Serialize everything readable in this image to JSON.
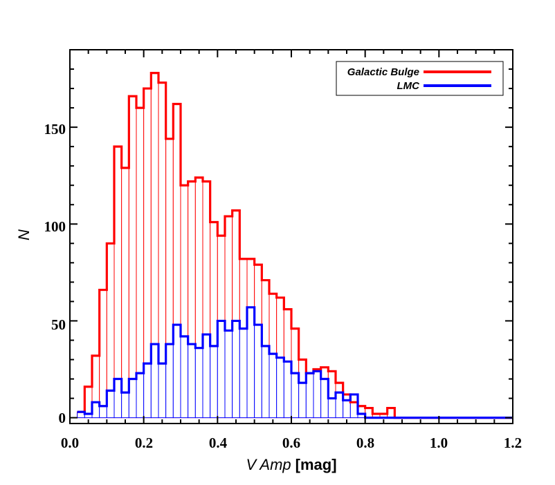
{
  "chart_data": {
    "type": "bar",
    "subtype": "histogram",
    "xlabel_italic": "V Amp",
    "xlabel_unit": "[mag]",
    "ylabel": "N",
    "xlim": [
      0.0,
      1.2
    ],
    "ylim": [
      -3,
      190
    ],
    "x_ticks": [
      "0.0",
      "0.2",
      "0.4",
      "0.6",
      "0.8",
      "1.0",
      "1.2"
    ],
    "x_tick_values": [
      0.0,
      0.2,
      0.4,
      0.6,
      0.8,
      1.0,
      1.2
    ],
    "y_ticks": [
      "0",
      "50",
      "100",
      "150"
    ],
    "y_tick_values": [
      0,
      50,
      100,
      150
    ],
    "bin_width": 0.02,
    "legend_position": "top-right",
    "series": [
      {
        "name": "Galactic Bulge",
        "color": "#ff0000",
        "bin_start": 0.02,
        "values": [
          3,
          16,
          32,
          66,
          90,
          140,
          129,
          166,
          160,
          170,
          178,
          173,
          144,
          162,
          120,
          122,
          124,
          122,
          101,
          94,
          104,
          107,
          82,
          82,
          79,
          71,
          64,
          62,
          56,
          46,
          30,
          23,
          25,
          26,
          24,
          18,
          12,
          8,
          6,
          5,
          2,
          2,
          5,
          0,
          0,
          0,
          0,
          0,
          0,
          0,
          0,
          0,
          0,
          0,
          0,
          0,
          0,
          0,
          0
        ]
      },
      {
        "name": "LMC",
        "color": "#0000ff",
        "bin_start": 0.02,
        "values": [
          3,
          2,
          8,
          6,
          14,
          20,
          13,
          20,
          23,
          28,
          38,
          28,
          38,
          48,
          42,
          38,
          36,
          43,
          37,
          50,
          45,
          50,
          46,
          57,
          48,
          37,
          33,
          31,
          29,
          23,
          18,
          23,
          24,
          20,
          10,
          13,
          9,
          12,
          2,
          0,
          0,
          0,
          0,
          0,
          0,
          0,
          0,
          0,
          0,
          0,
          0,
          0,
          0,
          0,
          0,
          0,
          0,
          0,
          0
        ]
      }
    ]
  }
}
